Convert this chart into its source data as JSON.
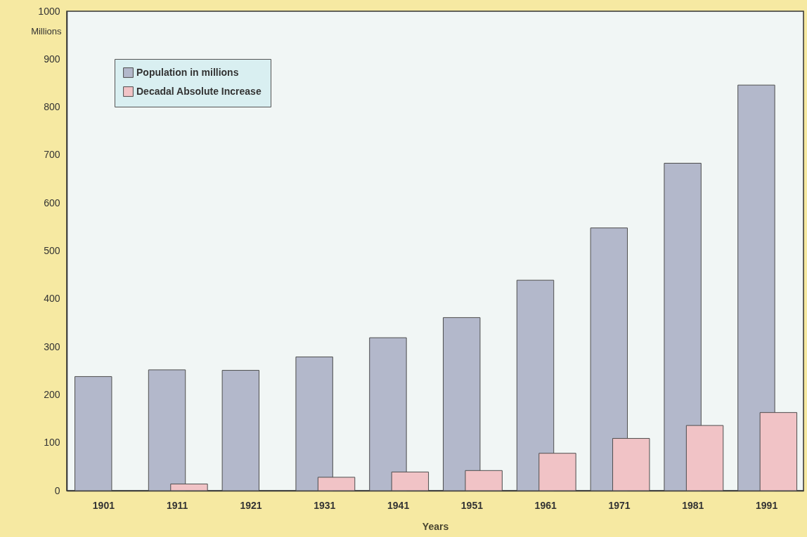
{
  "chart_data": {
    "type": "bar",
    "xlabel": "Years",
    "ylabel": "Millions",
    "categories": [
      "1901",
      "1911",
      "1921",
      "1931",
      "1941",
      "1951",
      "1961",
      "1971",
      "1981",
      "1991"
    ],
    "series": [
      {
        "name": "Population in millions",
        "color": "#b3b8cb",
        "values": [
          238,
          252,
          251,
          279,
          319,
          361,
          439,
          548,
          683,
          846
        ]
      },
      {
        "name": "Decadal Absolute Increase",
        "color": "#f1c3c6",
        "values": [
          null,
          14,
          null,
          28,
          39,
          42,
          78,
          109,
          136,
          163
        ]
      }
    ],
    "ylim": [
      0,
      1000
    ],
    "yticks": [
      0,
      100,
      200,
      300,
      400,
      500,
      600,
      700,
      800,
      900,
      1000
    ],
    "legend": "top left"
  }
}
